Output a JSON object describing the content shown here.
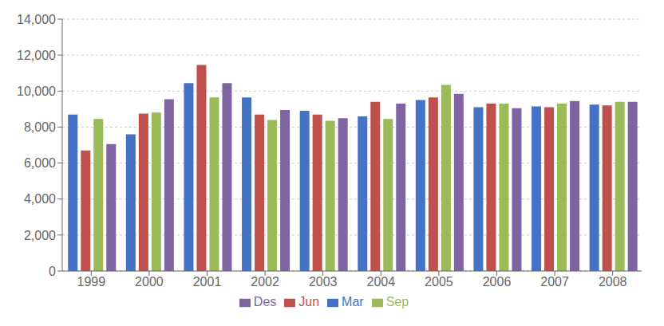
{
  "chart_data": {
    "type": "bar",
    "categories": [
      "1999",
      "2000",
      "2001",
      "2002",
      "2003",
      "2004",
      "2005",
      "2006",
      "2007",
      "2008"
    ],
    "series": [
      {
        "name": "Mar",
        "color": "#4472C4",
        "values": [
          8700,
          7600,
          10450,
          9650,
          8900,
          8600,
          9500,
          9100,
          9150,
          9250
        ]
      },
      {
        "name": "Jun",
        "color": "#C0504D",
        "values": [
          6700,
          8750,
          11450,
          8700,
          8700,
          9400,
          9650,
          9300,
          9100,
          9200
        ]
      },
      {
        "name": "Sep",
        "color": "#9BBB59",
        "values": [
          8450,
          8800,
          9650,
          8400,
          8350,
          8450,
          10350,
          9300,
          9300,
          9400
        ]
      },
      {
        "name": "Des",
        "color": "#8064A2",
        "values": [
          7050,
          9550,
          10450,
          8950,
          8500,
          9300,
          9850,
          9050,
          9450,
          9400
        ]
      }
    ],
    "ylim": [
      0,
      14000
    ],
    "yticks": [
      0,
      {
        "value": 2000,
        "label": "2,000"
      },
      {
        "value": 4000,
        "label": "4,000"
      },
      {
        "value": 6000,
        "label": "6,000"
      },
      {
        "value": 8000,
        "label": "8,000"
      },
      {
        "value": 10000,
        "label": "10,000"
      },
      {
        "value": 12000,
        "label": "12,000"
      },
      {
        "value": 14000,
        "label": "14,000"
      }
    ],
    "grid": true,
    "legend": "bottom"
  }
}
